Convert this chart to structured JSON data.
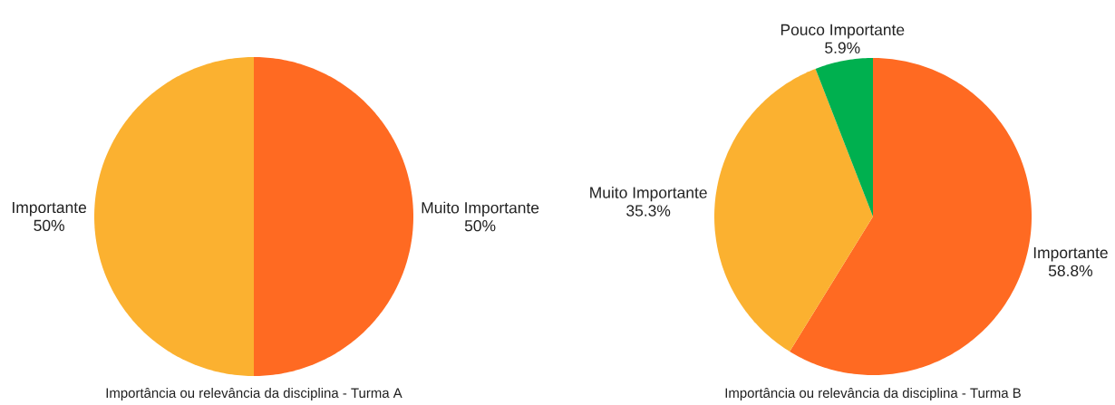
{
  "chart_data": [
    {
      "type": "pie",
      "title": "Importância ou relevância da disciplina - Turma A",
      "categories": [
        "Muito Importante",
        "Importante"
      ],
      "values": [
        50,
        50
      ],
      "colors": [
        "#ff6a22",
        "#fbb130"
      ],
      "value_labels": [
        "50%",
        "50%"
      ]
    },
    {
      "type": "pie",
      "title": "Importância ou relevância da disciplina - Turma B",
      "categories": [
        "Importante",
        "Muito Importante",
        "Pouco Importante"
      ],
      "values": [
        58.8,
        35.3,
        5.9
      ],
      "colors": [
        "#ff6a22",
        "#fbb130",
        "#00b04f"
      ],
      "value_labels": [
        "58.8%",
        "35.3%",
        "5.9%"
      ]
    }
  ]
}
